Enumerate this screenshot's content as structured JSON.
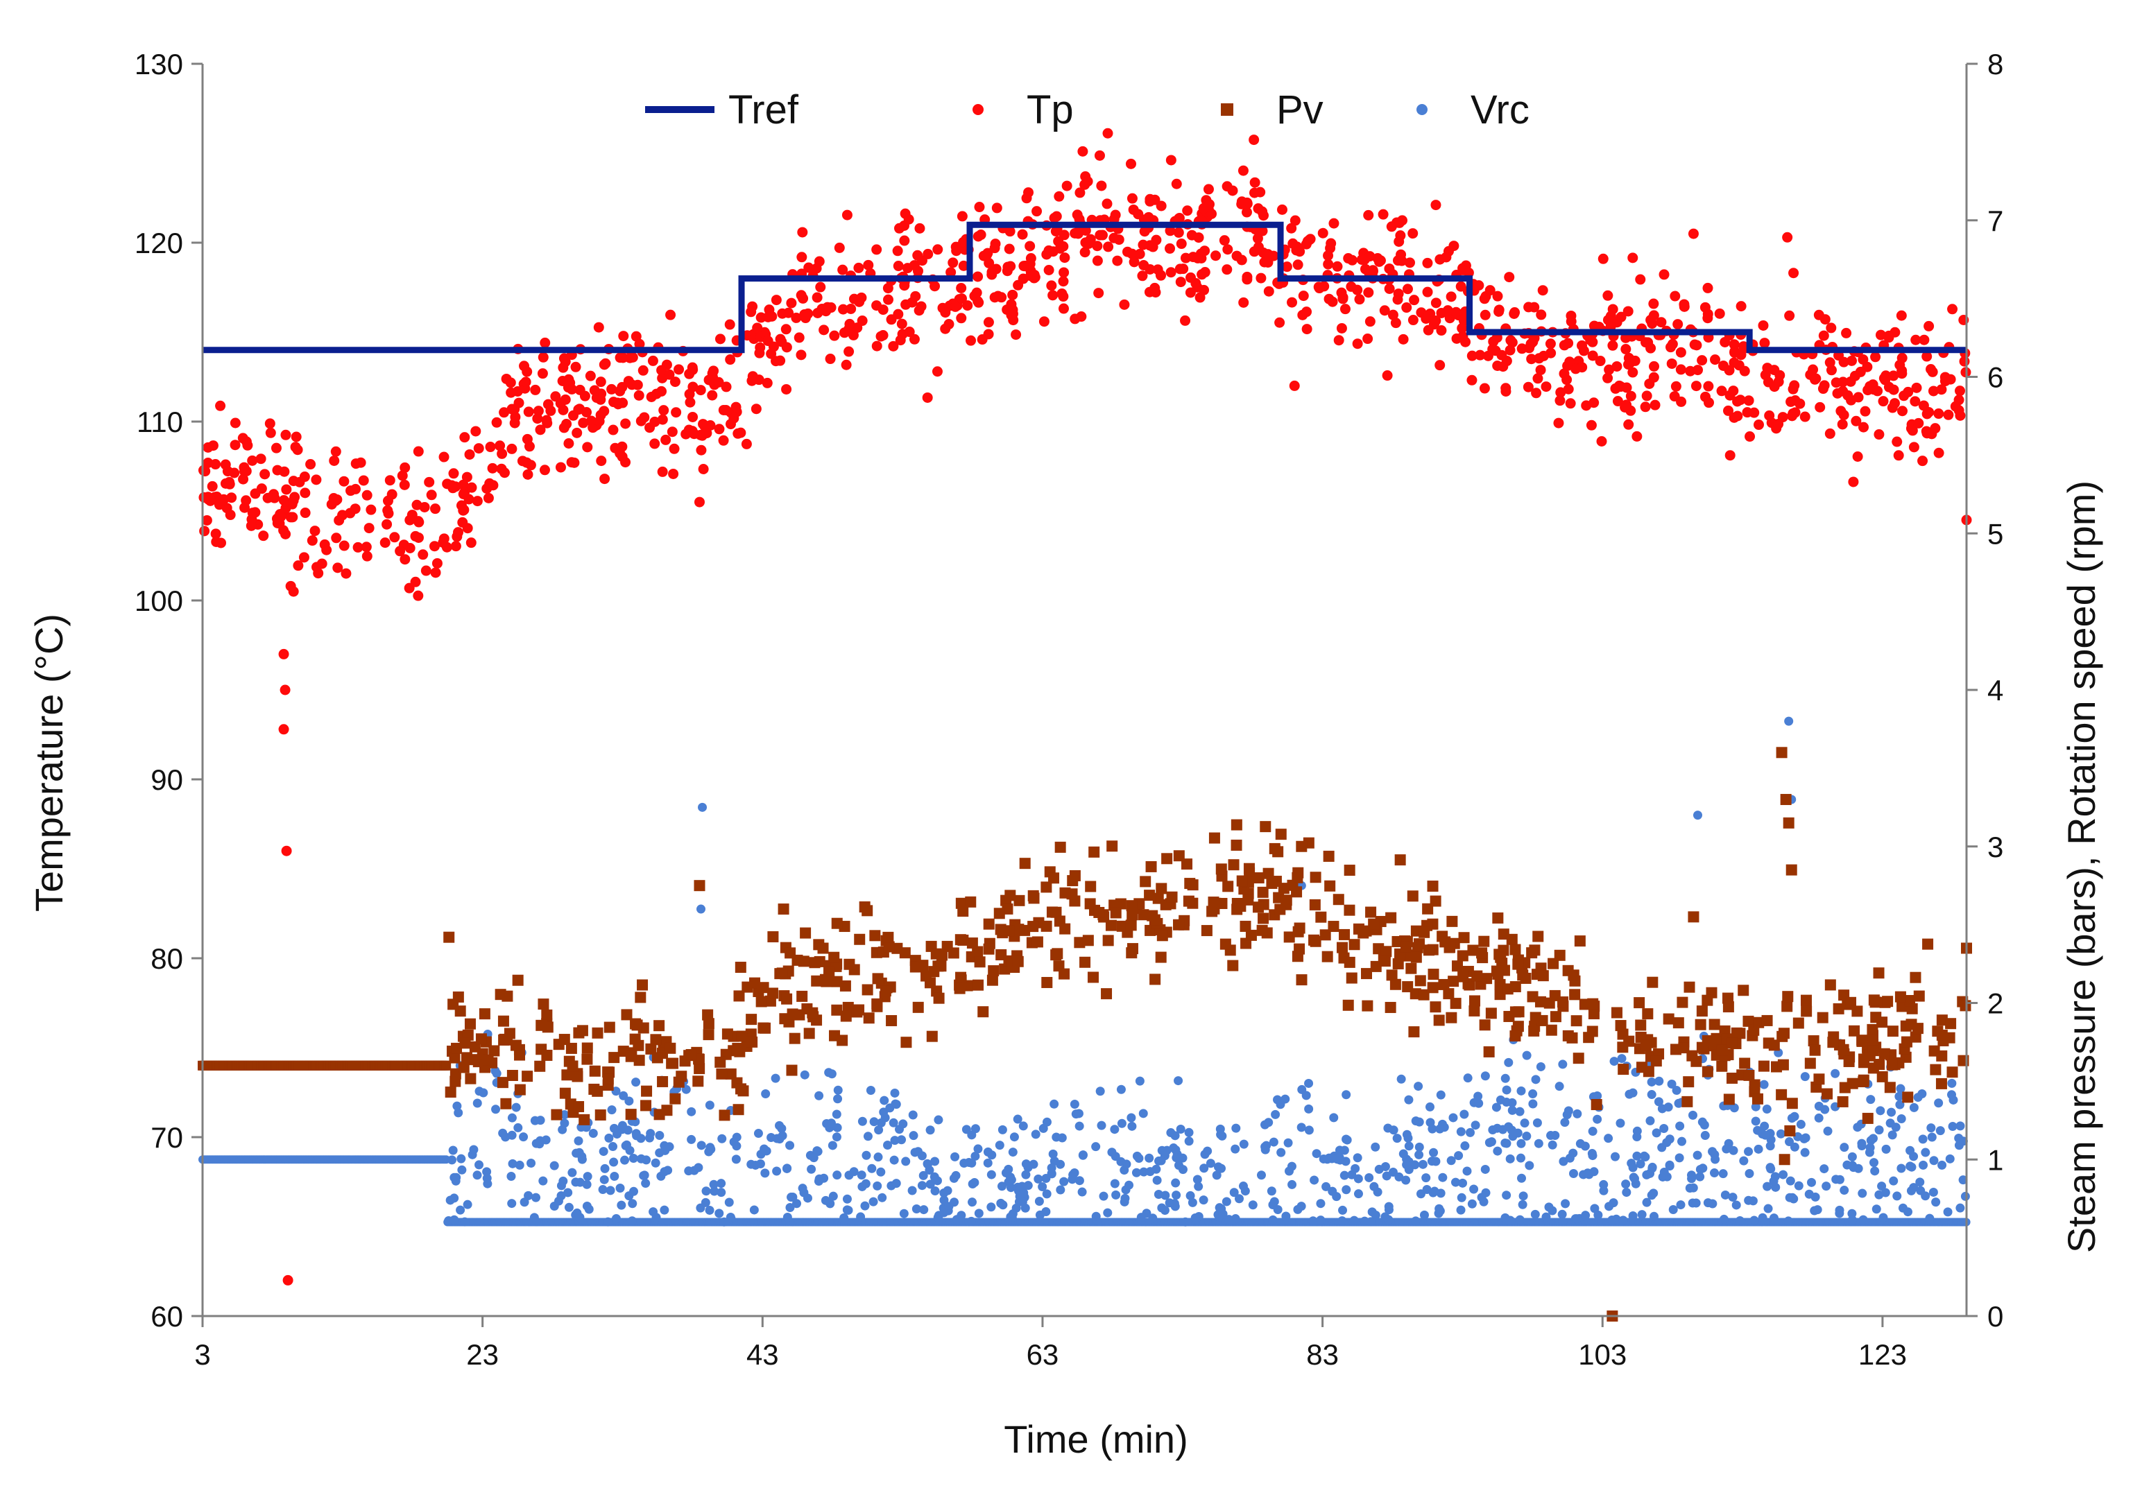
{
  "chart_data": {
    "type": "scatter",
    "xlabel": "Time (min)",
    "ylabel_left": "Temperature  (°C)",
    "ylabel_right": "Steam pressure  (bars),  Rotation  speed  (rpm)",
    "xlim": [
      3,
      129
    ],
    "ylim_left": [
      60,
      130
    ],
    "ylim_right": [
      0,
      8
    ],
    "xticks": [
      3,
      23,
      43,
      63,
      83,
      103,
      123
    ],
    "yticks_left": [
      60,
      70,
      80,
      90,
      100,
      110,
      120,
      130
    ],
    "yticks_right": [
      0,
      1,
      2,
      3,
      4,
      5,
      6,
      7,
      8
    ],
    "grid": false,
    "legend_position": "top-center",
    "colors": {
      "Tref": "#0a1f8f",
      "Tp": "#ff0a0a",
      "Pv": "#993300",
      "Vrc": "#4a7fd4"
    },
    "series": [
      {
        "name": "Tref",
        "marker": "line",
        "axis": "left",
        "x": [
          3,
          41.5,
          41.5,
          57.8,
          57.8,
          80,
          80,
          93.5,
          93.5,
          113.5,
          113.5,
          129
        ],
        "y": [
          114,
          114,
          118,
          118,
          121,
          121,
          118,
          118,
          115,
          115,
          114,
          114
        ]
      },
      {
        "name": "Tp",
        "marker": "circle",
        "axis": "left",
        "x": [
          3,
          5,
          7,
          8,
          9,
          10,
          11,
          12,
          13,
          15,
          17,
          19,
          20,
          21,
          23,
          25,
          27,
          29,
          31,
          33,
          35,
          37,
          39,
          41,
          43,
          45,
          47,
          49,
          51,
          53,
          55,
          57,
          59,
          61,
          63,
          65,
          67,
          69,
          71,
          73,
          75,
          77,
          79,
          81,
          83,
          85,
          87,
          89,
          91,
          93,
          95,
          97,
          99,
          101,
          103,
          105,
          107,
          109,
          111,
          113,
          115,
          117,
          119,
          121,
          123,
          125,
          127,
          129
        ],
        "y": [
          106,
          106.5,
          106,
          105.5,
          105.5,
          105.5,
          105,
          105,
          104.5,
          104.5,
          104.5,
          104.5,
          104.5,
          105,
          107,
          110,
          111,
          111,
          111,
          112,
          111.5,
          110,
          110.5,
          112,
          114,
          116,
          116.5,
          117,
          117,
          117.5,
          117.5,
          117.5,
          118,
          118.5,
          119.5,
          120,
          121,
          121,
          120,
          119.5,
          120,
          121,
          120,
          119,
          118.5,
          118.5,
          118,
          118,
          117.5,
          117,
          115.5,
          115,
          114,
          113.5,
          113.5,
          114,
          114,
          114,
          113.5,
          113,
          112.5,
          112.5,
          112.5,
          112.5,
          112,
          111.5,
          112,
          113
        ],
        "noise": 2.8,
        "points_per_minute": 10,
        "outliers": [
          {
            "x": 8.8,
            "y": 97
          },
          {
            "x": 8.9,
            "y": 95
          },
          {
            "x": 8.8,
            "y": 92.8
          },
          {
            "x": 9.0,
            "y": 86
          },
          {
            "x": 9.1,
            "y": 62
          },
          {
            "x": 9.3,
            "y": 100.8
          },
          {
            "x": 38.5,
            "y": 105.5
          },
          {
            "x": 81,
            "y": 112
          },
          {
            "x": 109.5,
            "y": 120.5
          },
          {
            "x": 116.2,
            "y": 120.3
          },
          {
            "x": 129,
            "y": 104.5
          },
          {
            "x": 9.5,
            "y": 100.5
          }
        ]
      },
      {
        "name": "Pv",
        "marker": "square",
        "axis": "right",
        "pre": {
          "x_from": 3,
          "x_to": 20.5,
          "y": 1.6
        },
        "x": [
          20.5,
          23,
          25,
          27,
          29,
          31,
          33,
          35,
          37,
          39,
          41,
          43,
          45,
          47,
          49,
          51,
          53,
          55,
          57,
          59,
          61,
          63,
          65,
          67,
          69,
          71,
          73,
          75,
          77,
          79,
          81,
          83,
          85,
          87,
          89,
          91,
          93,
          95,
          97,
          99,
          101,
          103,
          105,
          107,
          109,
          111,
          113,
          115,
          117,
          119,
          121,
          123,
          125,
          127,
          129
        ],
        "y": [
          1.85,
          1.8,
          1.75,
          1.65,
          1.6,
          1.55,
          1.6,
          1.7,
          1.6,
          1.65,
          1.75,
          2.05,
          2.1,
          2.15,
          2.2,
          2.25,
          2.2,
          2.2,
          2.2,
          2.35,
          2.4,
          2.5,
          2.6,
          2.6,
          2.6,
          2.6,
          2.65,
          2.65,
          2.6,
          2.75,
          2.65,
          2.55,
          2.45,
          2.45,
          2.35,
          2.35,
          2.25,
          2.15,
          2.15,
          2.05,
          1.95,
          1.85,
          1.8,
          1.8,
          1.75,
          1.75,
          1.75,
          1.7,
          1.7,
          1.75,
          1.75,
          1.75,
          1.8,
          1.75,
          1.8
        ],
        "noise": 0.3,
        "points_per_minute": 7,
        "outliers": [
          {
            "x": 20.6,
            "y": 2.42
          },
          {
            "x": 38.5,
            "y": 2.75
          },
          {
            "x": 44.5,
            "y": 2.6
          },
          {
            "x": 81.5,
            "y": 3.0
          },
          {
            "x": 103.7,
            "y": 0.0
          },
          {
            "x": 109.5,
            "y": 2.55
          },
          {
            "x": 115.8,
            "y": 3.6
          },
          {
            "x": 116.1,
            "y": 3.3
          },
          {
            "x": 116.3,
            "y": 3.15
          },
          {
            "x": 116.5,
            "y": 2.85
          },
          {
            "x": 129,
            "y": 2.35
          },
          {
            "x": 116.0,
            "y": 1.0
          }
        ]
      },
      {
        "name": "Vrc",
        "marker": "circle",
        "axis": "right",
        "pre": {
          "x_from": 3,
          "x_to": 20.5,
          "y": 1.0
        },
        "base": 0.6,
        "x": [
          20.5,
          25,
          30,
          35,
          40,
          45,
          50,
          55,
          60,
          65,
          70,
          75,
          80,
          85,
          90,
          95,
          100,
          105,
          110,
          115,
          120,
          125,
          129
        ],
        "y": [
          1.3,
          1.2,
          1.1,
          1.1,
          1.05,
          1.15,
          1.05,
          1.0,
          0.95,
          1.05,
          1.05,
          1.0,
          1.05,
          1.05,
          1.1,
          1.2,
          1.1,
          1.15,
          1.2,
          1.15,
          1.15,
          1.1,
          1.1
        ],
        "spread": 0.55,
        "points_per_minute": 9,
        "outliers": [
          {
            "x": 38.7,
            "y": 3.25
          },
          {
            "x": 38.6,
            "y": 2.6
          },
          {
            "x": 109.8,
            "y": 3.2
          },
          {
            "x": 116.3,
            "y": 3.8
          },
          {
            "x": 116.5,
            "y": 3.3
          },
          {
            "x": 81.5,
            "y": 2.75
          }
        ]
      }
    ]
  }
}
